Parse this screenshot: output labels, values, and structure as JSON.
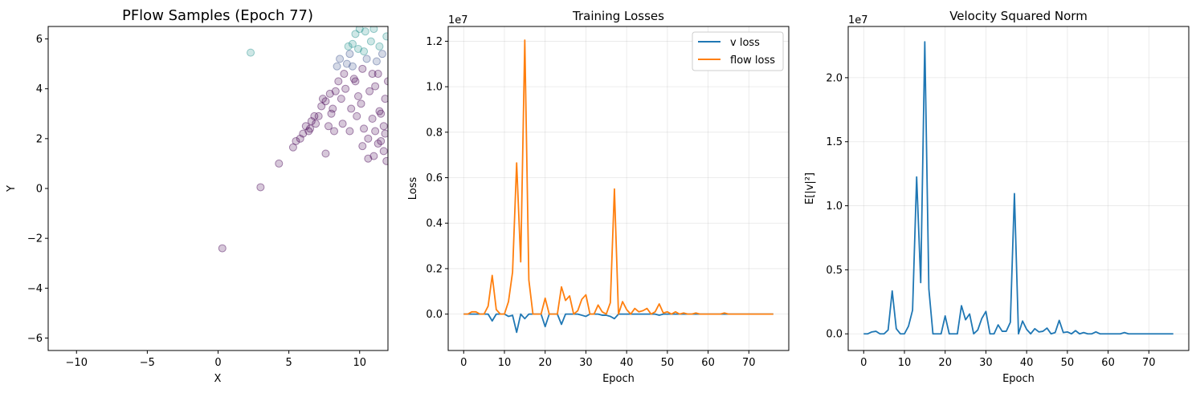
{
  "chart_data": [
    {
      "type": "scatter",
      "title": "PFlow Samples (Epoch 77)",
      "xlabel": "X",
      "ylabel": "Y",
      "xlim": [
        -12,
        12
      ],
      "ylim": [
        -6.5,
        6.5
      ],
      "xticks": [
        "−10",
        "−5",
        "0",
        "5",
        "10"
      ],
      "xtick_values": [
        -10,
        -5,
        0,
        5,
        10
      ],
      "yticks": [
        "−6",
        "−4",
        "−2",
        "0",
        "2",
        "4",
        "6"
      ],
      "ytick_values": [
        -6,
        -4,
        -2,
        0,
        2,
        4,
        6
      ],
      "grid": false,
      "colors": {
        "low": "#440154",
        "mid": "#3b528b",
        "high": "#21918c"
      },
      "points": [
        [
          0.3,
          -2.4
        ],
        [
          3.0,
          0.05
        ],
        [
          4.3,
          1.0
        ],
        [
          2.3,
          5.45
        ],
        [
          5.3,
          1.65
        ],
        [
          5.5,
          1.9
        ],
        [
          5.8,
          2.0
        ],
        [
          6.0,
          2.2
        ],
        [
          6.2,
          2.5
        ],
        [
          6.4,
          2.3
        ],
        [
          6.6,
          2.7
        ],
        [
          6.9,
          2.6
        ],
        [
          7.1,
          2.9
        ],
        [
          7.6,
          1.4
        ],
        [
          7.3,
          3.3
        ],
        [
          7.6,
          3.5
        ],
        [
          7.9,
          3.8
        ],
        [
          8.1,
          3.2
        ],
        [
          8.3,
          3.9
        ],
        [
          8.5,
          4.3
        ],
        [
          8.7,
          3.6
        ],
        [
          8.9,
          4.6
        ],
        [
          9.1,
          5.0
        ],
        [
          9.3,
          5.4
        ],
        [
          9.5,
          5.8
        ],
        [
          9.7,
          6.2
        ],
        [
          9.0,
          4.0
        ],
        [
          9.6,
          4.4
        ],
        [
          9.9,
          3.7
        ],
        [
          10.2,
          4.8
        ],
        [
          10.5,
          5.2
        ],
        [
          10.8,
          5.9
        ],
        [
          11.1,
          4.1
        ],
        [
          11.4,
          3.1
        ],
        [
          11.7,
          2.5
        ],
        [
          10.6,
          1.2
        ],
        [
          11.0,
          1.3
        ],
        [
          11.5,
          1.9
        ],
        [
          11.8,
          2.2
        ],
        [
          10.9,
          2.8
        ],
        [
          10.3,
          2.4
        ],
        [
          9.8,
          2.9
        ],
        [
          9.4,
          3.2
        ],
        [
          8.8,
          2.6
        ],
        [
          8.2,
          2.3
        ],
        [
          7.8,
          2.5
        ],
        [
          10.1,
          3.4
        ],
        [
          10.7,
          3.9
        ],
        [
          11.3,
          4.6
        ],
        [
          11.6,
          5.4
        ],
        [
          11.9,
          6.1
        ],
        [
          10.4,
          6.3
        ],
        [
          9.9,
          5.6
        ],
        [
          11.2,
          5.1
        ],
        [
          8.6,
          5.2
        ],
        [
          9.2,
          5.7
        ],
        [
          10.0,
          6.4
        ],
        [
          11.0,
          6.4
        ],
        [
          11.8,
          3.6
        ],
        [
          11.5,
          3.0
        ],
        [
          8.4,
          4.9
        ],
        [
          9.7,
          4.3
        ],
        [
          10.3,
          5.5
        ],
        [
          11.1,
          2.3
        ],
        [
          10.6,
          2.0
        ],
        [
          9.3,
          2.3
        ],
        [
          11.9,
          1.1
        ],
        [
          12.0,
          4.3
        ],
        [
          10.9,
          4.6
        ],
        [
          11.4,
          5.7
        ],
        [
          9.5,
          4.9
        ],
        [
          8.0,
          3.0
        ],
        [
          7.4,
          3.6
        ],
        [
          6.8,
          2.9
        ],
        [
          6.5,
          2.4
        ],
        [
          10.2,
          1.7
        ],
        [
          11.7,
          1.5
        ],
        [
          11.3,
          1.8
        ]
      ]
    },
    {
      "type": "line",
      "title": "Training Losses",
      "xlabel": "Epoch",
      "ylabel": "Loss",
      "offset_label": "1e7",
      "xlim": [
        -3.8,
        79.8
      ],
      "ylim": [
        -0.16,
        1.265
      ],
      "xticks": [
        "0",
        "10",
        "20",
        "30",
        "40",
        "50",
        "60",
        "70"
      ],
      "xtick_values": [
        0,
        10,
        20,
        30,
        40,
        50,
        60,
        70
      ],
      "yticks": [
        "0.0",
        "0.2",
        "0.4",
        "0.6",
        "0.8",
        "1.0",
        "1.2"
      ],
      "ytick_values": [
        0,
        0.2,
        0.4,
        0.6,
        0.8,
        1.0,
        1.2
      ],
      "grid": true,
      "legend": "top-right",
      "series": [
        {
          "name": "v loss",
          "color": "#1f77b4",
          "values": [
            0,
            0,
            0,
            0,
            0,
            0,
            0,
            -0.03,
            0,
            0,
            0,
            -0.01,
            -0.005,
            -0.08,
            0,
            -0.02,
            0,
            0,
            0,
            0,
            -0.055,
            0,
            0,
            0,
            -0.045,
            0,
            0,
            0,
            0,
            -0.005,
            -0.01,
            0,
            0,
            0,
            -0.005,
            -0.005,
            -0.01,
            -0.02,
            0,
            0,
            0,
            0,
            0,
            0,
            0,
            0,
            0,
            0,
            -0.005,
            0,
            0,
            0,
            0,
            0,
            0,
            0,
            0,
            0,
            0,
            0,
            0,
            0,
            0,
            0,
            0,
            0,
            0,
            0,
            0,
            0,
            0,
            0,
            0,
            0,
            0,
            0,
            0
          ]
        },
        {
          "name": "flow loss",
          "color": "#ff7f0e",
          "values": [
            0,
            0,
            0.01,
            0.01,
            0,
            0,
            0.035,
            0.17,
            0.02,
            0,
            0,
            0.055,
            0.185,
            0.665,
            0.23,
            1.205,
            0.15,
            0,
            0,
            0,
            0.07,
            0,
            0,
            0,
            0.12,
            0.06,
            0.08,
            0,
            0.015,
            0.065,
            0.085,
            0,
            0,
            0.04,
            0.01,
            0,
            0.05,
            0.55,
            0,
            0.055,
            0.02,
            0,
            0.025,
            0.01,
            0.015,
            0.025,
            0,
            0.01,
            0.045,
            0.005,
            0.01,
            0,
            0.01,
            0,
            0.005,
            0,
            0,
            0.005,
            0,
            0,
            0,
            0,
            0,
            0,
            0.005,
            0,
            0,
            0,
            0,
            0,
            0,
            0,
            0,
            0,
            0,
            0,
            0
          ]
        }
      ]
    },
    {
      "type": "line",
      "title": "Velocity Squared Norm",
      "xlabel": "Epoch",
      "ylabel": "E[|v|²]",
      "offset_label": "1e7",
      "xlim": [
        -3.8,
        79.8
      ],
      "ylim": [
        -0.13,
        2.4
      ],
      "xticks": [
        "0",
        "10",
        "20",
        "30",
        "40",
        "50",
        "60",
        "70"
      ],
      "xtick_values": [
        0,
        10,
        20,
        30,
        40,
        50,
        60,
        70
      ],
      "yticks": [
        "0.0",
        "0.5",
        "1.0",
        "1.5",
        "2.0"
      ],
      "ytick_values": [
        0,
        0.5,
        1.0,
        1.5,
        2.0
      ],
      "grid": true,
      "series": [
        {
          "name": "",
          "color": "#1f77b4",
          "values": [
            0,
            0,
            0.015,
            0.02,
            0,
            0,
            0.03,
            0.335,
            0.04,
            0,
            0,
            0.06,
            0.185,
            1.225,
            0.4,
            2.28,
            0.35,
            0,
            0,
            0,
            0.14,
            0,
            0,
            0,
            0.22,
            0.11,
            0.155,
            0,
            0.03,
            0.12,
            0.175,
            0,
            0,
            0.07,
            0.02,
            0.02,
            0.09,
            1.095,
            0,
            0.1,
            0.035,
            0,
            0.04,
            0.015,
            0.02,
            0.045,
            0,
            0.01,
            0.105,
            0.01,
            0.015,
            0,
            0.025,
            0,
            0.01,
            0,
            0,
            0.015,
            0,
            0,
            0,
            0,
            0,
            0,
            0.01,
            0,
            0,
            0,
            0,
            0,
            0,
            0,
            0,
            0,
            0,
            0,
            0
          ]
        }
      ]
    }
  ]
}
